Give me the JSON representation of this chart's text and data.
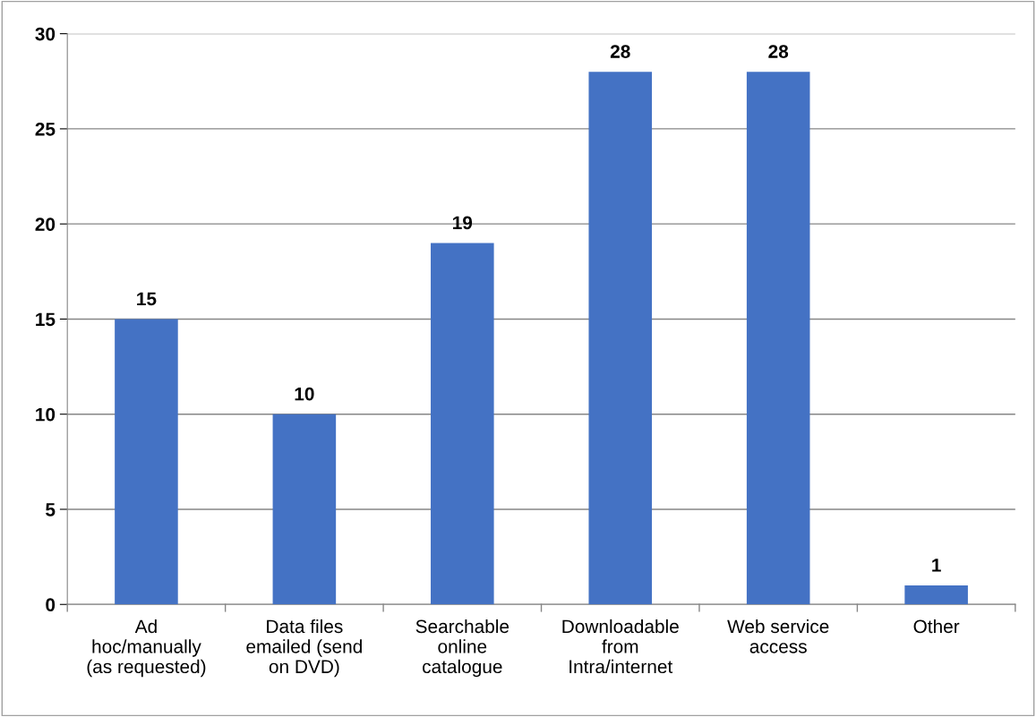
{
  "chart_data": {
    "type": "bar",
    "categories": [
      "Ad\nhoc/manually\n(as requested)",
      "Data files\nemailed (send\non DVD)",
      "Searchable\nonline\ncatalogue",
      "Downloadable\nfrom\nIntra/internet",
      "Web service\naccess",
      "Other"
    ],
    "values": [
      15,
      10,
      19,
      28,
      28,
      1
    ],
    "color": "#4472c4",
    "ylim": [
      0,
      30
    ],
    "yticks": [
      0,
      5,
      10,
      15,
      20,
      25,
      30
    ],
    "grid": "y",
    "data_labels": true,
    "legend": false
  }
}
